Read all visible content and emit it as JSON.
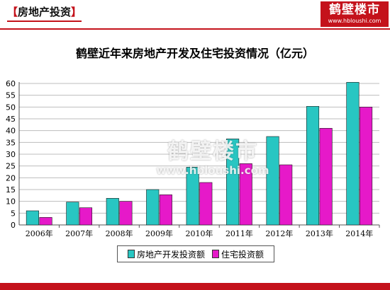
{
  "header": {
    "section_open": "【",
    "section_title": "房地产投资",
    "section_close": "】",
    "logo_text": "鹤壁楼市",
    "logo_url": "www.hbloushi.com"
  },
  "watermark": {
    "text": "鹤壁楼市",
    "url": "www.hbloushi.com"
  },
  "colors": {
    "brand": "#c4121b",
    "series1": "#28c6c2",
    "series2": "#e619c9"
  },
  "chart_data": {
    "type": "bar",
    "title": "鹤壁近年来房地产开发及住宅投资情况（亿元）",
    "xlabel": "",
    "ylabel": "",
    "categories": [
      "2006年",
      "2007年",
      "2008年",
      "2009年",
      "2010年",
      "2011年",
      "2012年",
      "2013年",
      "2014年"
    ],
    "series": [
      {
        "name": "房地产开发投资额",
        "values": [
          6,
          9.7,
          11.3,
          15,
          24.5,
          36.5,
          37.5,
          50.3,
          60.5
        ]
      },
      {
        "name": "住宅投资额",
        "values": [
          3.2,
          7.3,
          10,
          12.8,
          18,
          26,
          25.5,
          41,
          50
        ]
      }
    ],
    "ylim": [
      0,
      60
    ],
    "yticks": [
      0,
      5,
      10,
      15,
      20,
      25,
      30,
      35,
      40,
      45,
      50,
      55,
      60
    ],
    "grid": true,
    "legend_position": "bottom"
  }
}
